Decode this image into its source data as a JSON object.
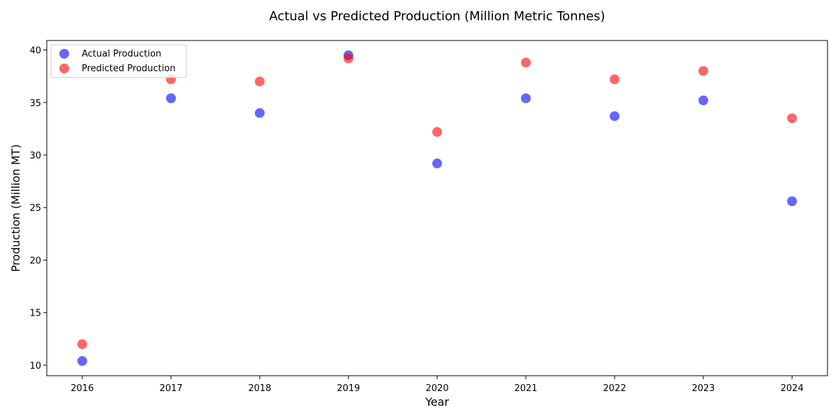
{
  "chart_data": {
    "type": "scatter",
    "title": "Actual vs Predicted Production (Million Metric Tonnes)",
    "xlabel": "Year",
    "ylabel": "Production (Million MT)",
    "xlim": [
      2015.6,
      2024.4
    ],
    "ylim": [
      9.0,
      40.9
    ],
    "xticks": [
      2016,
      2017,
      2018,
      2019,
      2020,
      2021,
      2022,
      2023,
      2024
    ],
    "yticks": [
      10,
      15,
      20,
      25,
      30,
      35,
      40
    ],
    "grid": false,
    "legend_position": "top-left",
    "series": [
      {
        "name": "Actual Production",
        "color": "#0000ff",
        "x": [
          2016,
          2017,
          2018,
          2019,
          2020,
          2021,
          2022,
          2023,
          2024
        ],
        "y": [
          10.4,
          35.4,
          34.0,
          39.5,
          29.2,
          35.4,
          33.7,
          35.2,
          25.6
        ]
      },
      {
        "name": "Predicted Production",
        "color": "#ff0000",
        "x": [
          2016,
          2017,
          2018,
          2019,
          2020,
          2021,
          2022,
          2023,
          2024
        ],
        "y": [
          12.0,
          37.2,
          37.0,
          39.2,
          32.2,
          38.8,
          37.2,
          38.0,
          33.5
        ]
      }
    ]
  }
}
